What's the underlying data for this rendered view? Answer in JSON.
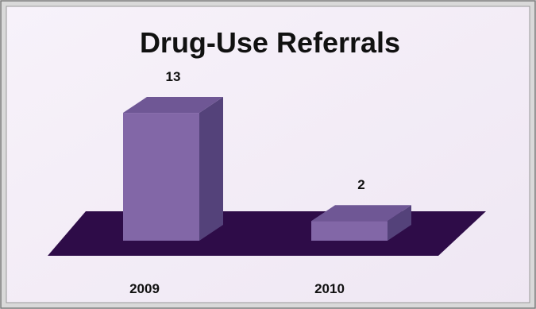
{
  "chart_data": {
    "type": "bar",
    "title": "Drug-Use Referrals",
    "categories": [
      "2009",
      "2010"
    ],
    "values": [
      13,
      2
    ],
    "xlabel": "",
    "ylabel": "",
    "ylim": [
      0,
      13
    ],
    "grid": false,
    "legend": "none",
    "data_labels": true,
    "three_d": true
  },
  "colors": {
    "background": "#f4eef7",
    "floor": "#2e0c48",
    "bar_front": "#8267a7",
    "bar_top": "#6f5795",
    "bar_side": "#54427a",
    "frame": "#8a8a8a"
  }
}
